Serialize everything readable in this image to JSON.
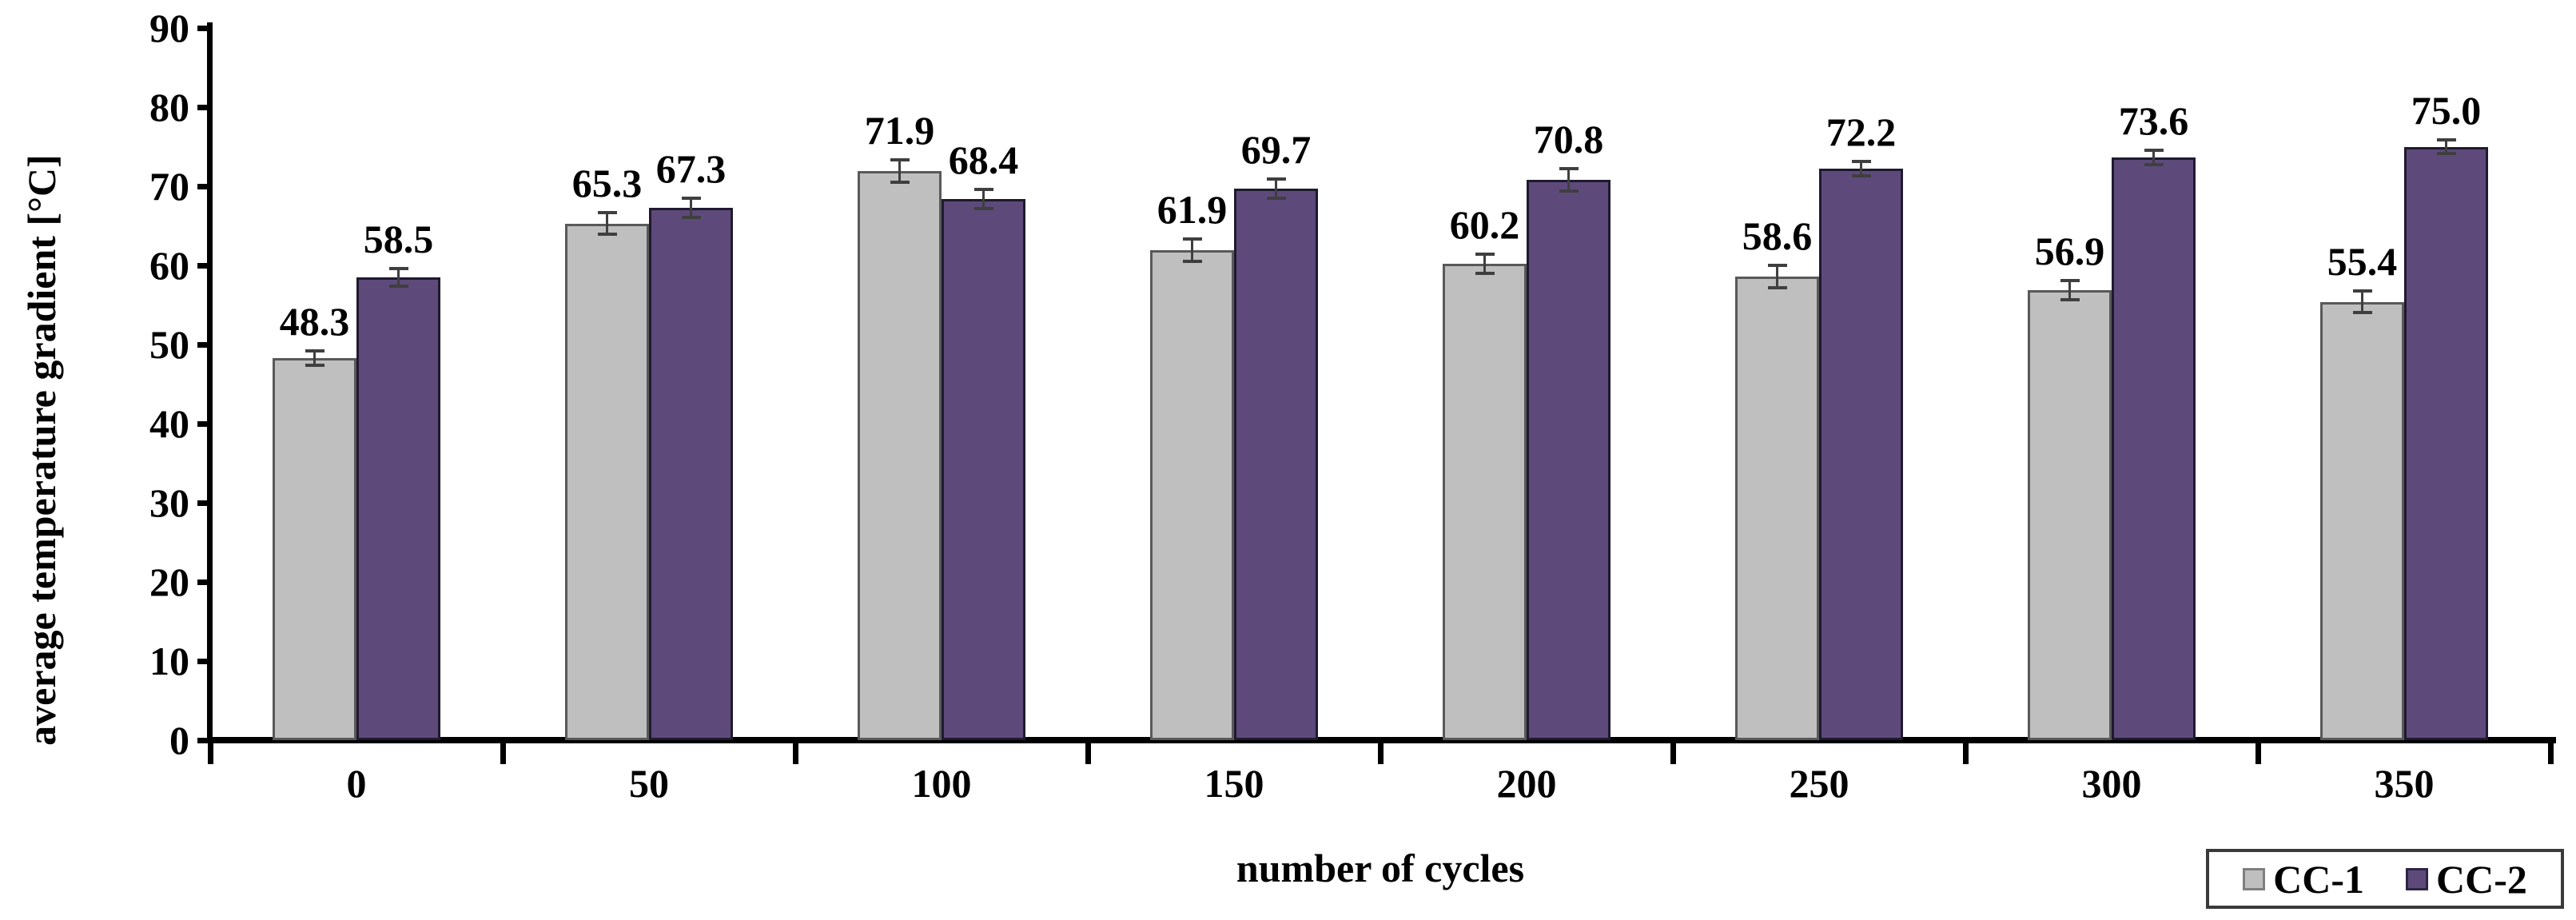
{
  "chart_data": {
    "type": "bar",
    "title": "",
    "xlabel": "number of cycles",
    "ylabel": "average temperature gradient [°C]",
    "categories": [
      "0",
      "50",
      "100",
      "150",
      "200",
      "250",
      "300",
      "350"
    ],
    "yticks": [
      0,
      10,
      20,
      30,
      40,
      50,
      60,
      70,
      80,
      90
    ],
    "ylim": [
      0,
      90
    ],
    "grid": false,
    "legend_position": "bottom-right",
    "value_label_decimals": 1,
    "series": [
      {
        "name": "CC-1",
        "color": "#bfbfbf",
        "border": "#595959",
        "values": [
          48.3,
          65.3,
          71.9,
          61.9,
          60.2,
          58.6,
          56.9,
          55.4
        ],
        "errors": [
          1.0,
          1.5,
          1.5,
          1.5,
          1.3,
          1.5,
          1.3,
          1.5
        ]
      },
      {
        "name": "CC-2",
        "color": "#5d4a7b",
        "border": "#1f1a2e",
        "values": [
          58.5,
          67.3,
          68.4,
          69.7,
          70.8,
          72.2,
          73.6,
          75.0
        ],
        "errors": [
          1.2,
          1.3,
          1.3,
          1.3,
          1.5,
          1.0,
          1.0,
          1.0
        ]
      }
    ],
    "error_bar_color": "#3f3f3f",
    "axis_color": "#000000",
    "background_color": "#ffffff",
    "legend_border_color": "#3a3a3a"
  }
}
